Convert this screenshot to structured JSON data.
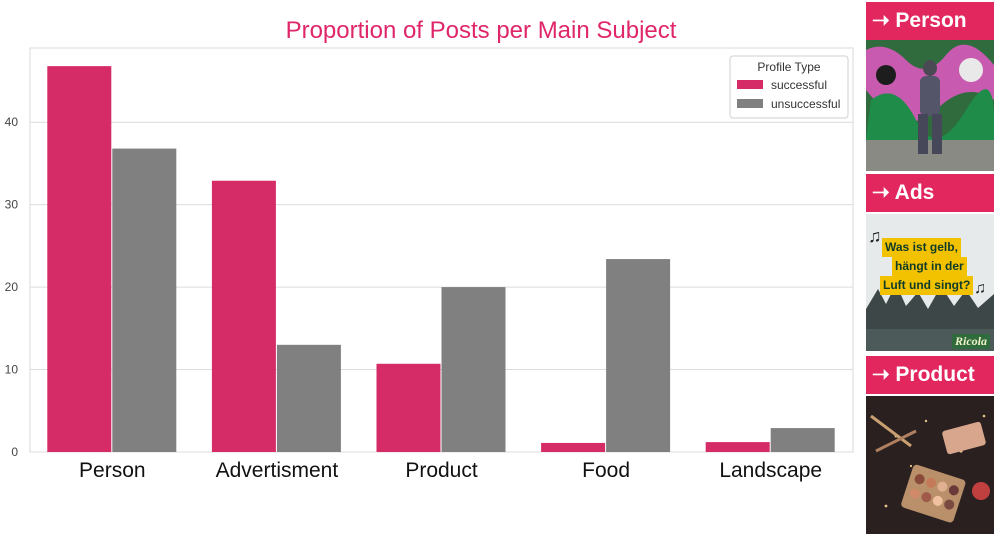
{
  "chart_data": {
    "type": "bar",
    "title": "Proportion of Posts per Main Subject",
    "xlabel": "",
    "ylabel": "",
    "categories": [
      "Person",
      "Advertisment",
      "Product",
      "Food",
      "Landscape"
    ],
    "series": [
      {
        "name": "successful",
        "values": [
          46.8,
          32.9,
          10.7,
          1.1,
          1.2
        ],
        "color": "#d52b66"
      },
      {
        "name": "unsuccessful",
        "values": [
          36.8,
          13.0,
          20.0,
          23.4,
          2.9
        ],
        "color": "#808080"
      }
    ],
    "ylim": [
      0,
      49
    ],
    "yticks": [
      0,
      10,
      20,
      30,
      40
    ],
    "grid": true,
    "legend": {
      "title": "Profile Type",
      "position": "top-right"
    }
  },
  "colors": {
    "accent": "#e2275f",
    "title": "#e0266a"
  },
  "side_panels": [
    {
      "label": "➝ Person"
    },
    {
      "label": "➝ Ads",
      "ad_text": [
        "Was ist gelb,",
        "hängt in der",
        "Luft und singt?"
      ],
      "brand": "Ricola"
    },
    {
      "label": "➝ Product"
    }
  ]
}
